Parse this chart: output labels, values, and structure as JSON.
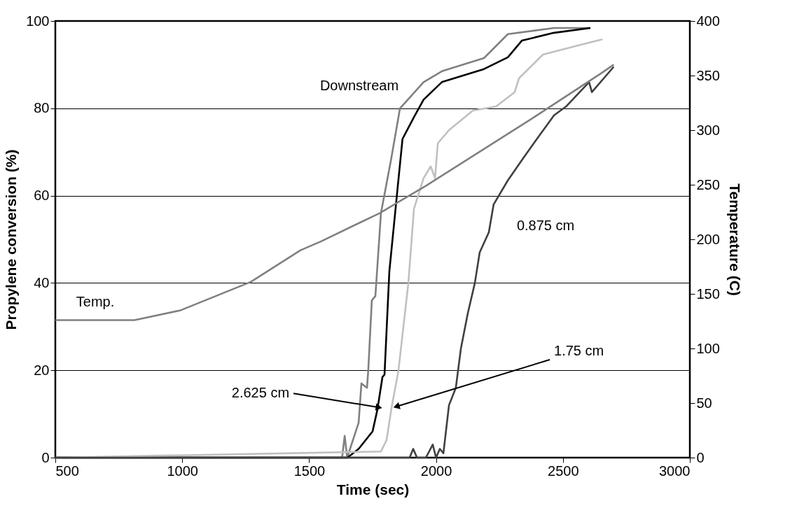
{
  "chart_data": {
    "type": "line",
    "xlabel": "Time (sec)",
    "ylabel": "Propylene conversion (%)",
    "y2label": "Temperature (C)",
    "xlim": [
      500,
      3000
    ],
    "xticks": [
      500,
      1000,
      1500,
      2000,
      2500,
      3000
    ],
    "ylim": [
      0,
      100
    ],
    "yticks": [
      0,
      20,
      40,
      60,
      80,
      100
    ],
    "y2lim": [
      0,
      400
    ],
    "y2ticks": [
      0,
      50,
      100,
      150,
      200,
      250,
      300,
      350,
      400
    ],
    "grid": "y",
    "legend": false,
    "line_style": "solid",
    "marker": "none",
    "series": [
      {
        "color": "#808080",
        "x": [
          500,
          1630,
          1640,
          1650,
          1678,
          1695,
          1706,
          1728,
          1733,
          1747,
          1761,
          1783,
          1822,
          1858,
          1951,
          2023,
          2189,
          2283,
          2465,
          2608
        ],
        "values": [
          0,
          0,
          5,
          0,
          5,
          8,
          17,
          16,
          20,
          36,
          37,
          56,
          68,
          80,
          86,
          88.5,
          91.5,
          97,
          98.4,
          98.4
        ]
      },
      {
        "color": "#000000",
        "x": [
          500,
          1651,
          1695,
          1750,
          1769,
          1789,
          1797,
          1816,
          1849,
          1868,
          1913,
          1951,
          2023,
          2189,
          2283,
          2338,
          2465,
          2608
        ],
        "values": [
          0,
          0,
          2,
          6,
          11,
          18.5,
          19,
          42.6,
          62,
          73,
          78,
          82,
          86,
          89,
          91.7,
          95.5,
          97.3,
          98.4
        ]
      },
      {
        "color": "#c0c0c0",
        "x": [
          500,
          1783,
          1805,
          1825,
          1852,
          1891,
          1913,
          1951,
          1979,
          1996,
          2007,
          2051,
          2145,
          2236,
          2310,
          2327,
          2421,
          2559,
          2655
        ],
        "values": [
          0,
          1.4,
          4,
          11.5,
          20,
          40,
          57,
          64,
          66.7,
          64,
          72,
          75,
          79.5,
          80.4,
          83.7,
          86.9,
          92.3,
          94.4,
          95.8
        ]
      },
      {
        "color": "#404040",
        "x": [
          500,
          1896,
          1910,
          1925,
          1960,
          1987,
          2000,
          2015,
          2029,
          2051,
          2078,
          2098,
          2125,
          2153,
          2172,
          2208,
          2227,
          2283,
          2346,
          2410,
          2465,
          2512,
          2603,
          2614,
          2700
        ],
        "values": [
          0,
          0,
          2,
          0,
          0,
          3,
          0,
          2,
          1,
          12,
          16,
          25,
          33,
          40,
          47,
          51.6,
          58,
          63.5,
          68.8,
          74,
          78.4,
          80.4,
          86,
          83.7,
          89.5
        ]
      },
      {
        "color": "#808080",
        "axis": "y2",
        "x": [
          500,
          812,
          994,
          1270,
          1466,
          1546,
          1778,
          1880,
          1960,
          2374,
          2650,
          2700
        ],
        "values": [
          126,
          126,
          135,
          161,
          190,
          198,
          224,
          238,
          249,
          310,
          352,
          360
        ]
      }
    ],
    "annotations": [
      "Downstream",
      "Temp.",
      {
        "text": "2.625 cm",
        "x": 1775,
        "y": 11.5
      },
      {
        "text": "1.75 cm",
        "x": 1844,
        "y": 11.7
      },
      "0.875 cm"
    ]
  }
}
